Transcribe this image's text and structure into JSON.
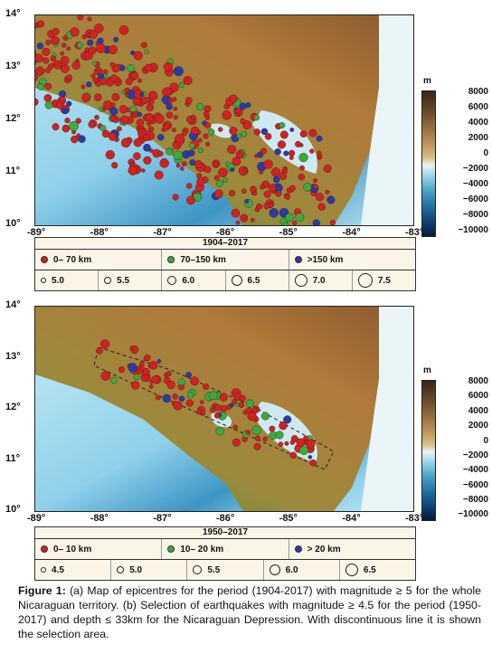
{
  "panel_a": {
    "lat_labels": [
      "14°",
      "13°",
      "12°",
      "11°",
      "10°"
    ],
    "lon_labels": [
      "-89°",
      "-88°",
      "-87°",
      "-86°",
      "-85°",
      "-84°",
      "-83°"
    ],
    "colorbar_unit": "m",
    "colorbar_ticks": [
      "8000",
      "6000",
      "4000",
      "2000",
      "0",
      "−2000",
      "−4000",
      "−6000",
      "−8000",
      "−10000"
    ],
    "legend_title": "1904–2017",
    "depth_classes": [
      {
        "label": "0– 70 km",
        "color": "#d42020"
      },
      {
        "label": "70–150 km",
        "color": "#3caa3c"
      },
      {
        "label": ">150 km",
        "color": "#2a3aa8"
      }
    ],
    "magnitudes": [
      "5.0",
      "5.5",
      "6.0",
      "6.5",
      "7.0",
      "7.5"
    ]
  },
  "panel_b": {
    "lat_labels": [
      "14°",
      "13°",
      "12°",
      "11°",
      "10°"
    ],
    "lon_labels": [
      "-89°",
      "-88°",
      "-87°",
      "-86°",
      "-85°",
      "-84°",
      "-83°"
    ],
    "colorbar_unit": "m",
    "colorbar_ticks": [
      "8000",
      "6000",
      "4000",
      "2000",
      "0",
      "−2000",
      "−4000",
      "−6000",
      "−8000",
      "−10000"
    ],
    "legend_title": "1950–2017",
    "depth_classes": [
      {
        "label": "0– 10 km",
        "color": "#d42020"
      },
      {
        "label": "10– 20 km",
        "color": "#3caa3c"
      },
      {
        "label": "> 20 km",
        "color": "#2a3aa8"
      }
    ],
    "magnitudes": [
      "4.5",
      "5.0",
      "5.5",
      "6.0",
      "6.5"
    ]
  },
  "caption": {
    "label": "Figure 1:",
    "text": " (a) Map of epicentres for the period (1904-2017) with magnitude ≥ 5 for the whole Nicaraguan territory. (b) Selection of earthquakes with magnitude ≥ 4.5 for the period (1950-2017) and depth ≤ 33km for the Nicaraguan Depression. With discontinuous line it is shown the selection area."
  }
}
